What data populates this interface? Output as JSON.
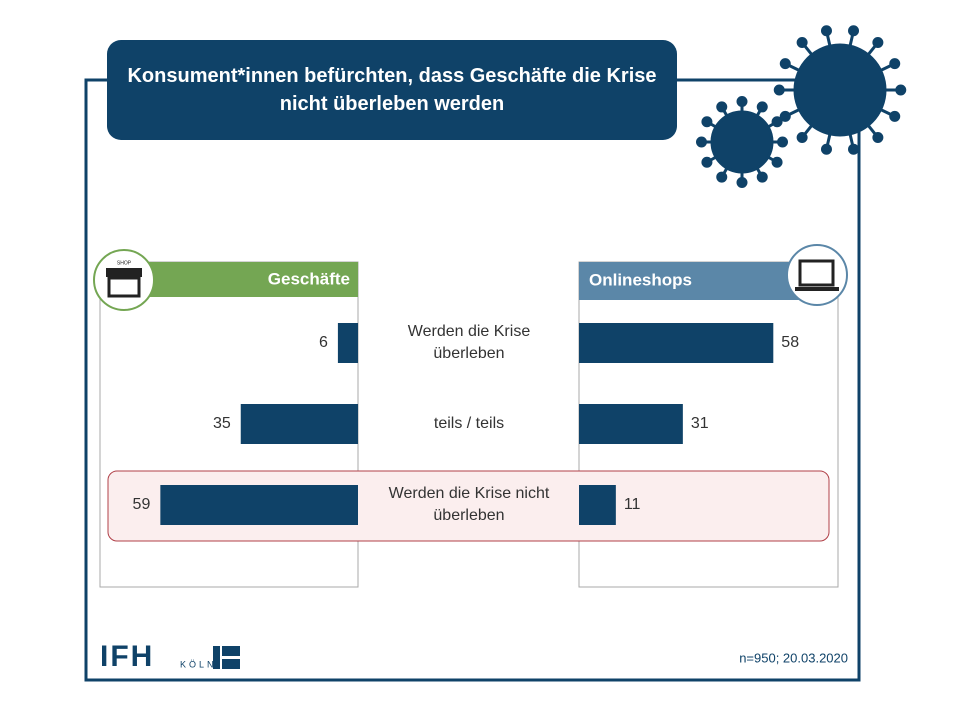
{
  "chart_data": {
    "type": "butterfly",
    "title": "Konsument*innen befürchten, dass Geschäfte die Krise nicht überleben werden",
    "categories": [
      "Werden die Krise überleben",
      "teils / teils",
      "Werden die Krise nicht überleben"
    ],
    "series": [
      {
        "name": "Geschäfte",
        "color": "#0f4268",
        "header_color": "#74a653",
        "values": [
          6,
          35,
          59
        ]
      },
      {
        "name": "Onlineshops",
        "color": "#0f4268",
        "header_color": "#5b87a8",
        "values": [
          58,
          31,
          11
        ]
      }
    ],
    "highlight_category": 2,
    "icon_label": "SHOP",
    "logo": "IFH",
    "logo_sub": "KÖLN",
    "note": "n=950; 20.03.2020"
  }
}
